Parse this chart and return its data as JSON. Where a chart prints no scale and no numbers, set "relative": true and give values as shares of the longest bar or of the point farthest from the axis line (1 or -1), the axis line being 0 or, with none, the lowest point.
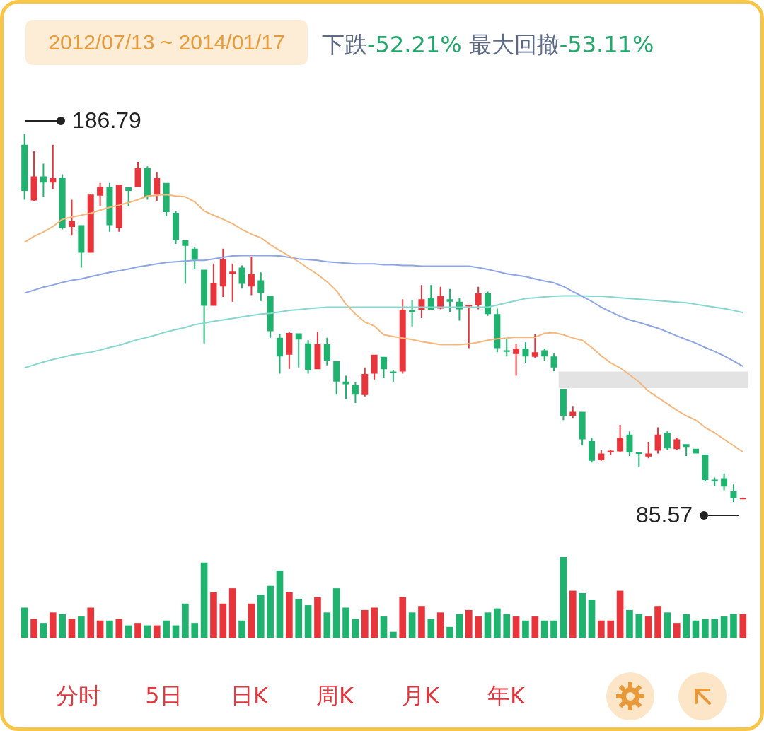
{
  "chart_data": [
    {
      "type": "candlestick",
      "title": "2012/07/13 ~ 2014/01/17",
      "subtitle": "下跌-52.21% 最大回撤-53.11%",
      "categories": [
        null,
        null,
        null,
        null,
        null,
        null,
        null,
        null,
        null,
        null,
        null,
        null,
        null,
        null,
        null,
        null,
        null,
        null,
        null,
        null,
        null,
        null,
        null,
        null,
        null,
        null,
        null,
        null,
        null,
        null,
        null,
        null,
        null,
        null,
        null,
        null,
        null,
        null,
        null,
        null,
        null,
        null,
        null,
        null,
        null,
        null,
        null,
        null,
        null,
        null,
        null,
        null,
        null,
        null,
        null,
        null,
        null,
        null,
        null,
        null,
        null,
        null,
        null,
        null,
        null,
        null,
        null,
        null,
        null,
        null,
        null,
        null,
        null,
        null,
        null,
        null,
        null
      ],
      "ohlc": [
        [
          183.9,
          186.79,
          168.8,
          171.2
        ],
        [
          168.6,
          182.3,
          168.3,
          175.2
        ],
        [
          175.2,
          178.7,
          169.5,
          173.5
        ],
        [
          173.5,
          183.9,
          171.7,
          174.7
        ],
        [
          174.7,
          175.8,
          160.6,
          161.0
        ],
        [
          161.3,
          168.8,
          158.9,
          162.9
        ],
        [
          161.8,
          161.8,
          150.1,
          154.2
        ],
        [
          154.2,
          170.4,
          154.2,
          170.2
        ],
        [
          169.9,
          173.4,
          167.0,
          172.3
        ],
        [
          172.3,
          173.4,
          160.0,
          161.8
        ],
        [
          161.0,
          172.9,
          160.0,
          172.9
        ],
        [
          172.2,
          172.2,
          167.1,
          171.2
        ],
        [
          172.3,
          179.2,
          172.3,
          177.5
        ],
        [
          177.5,
          178.0,
          168.8,
          169.6
        ],
        [
          170.2,
          176.4,
          168.3,
          174.7
        ],
        [
          173.4,
          173.4,
          164.3,
          165.4
        ],
        [
          165.2,
          165.6,
          156.6,
          157.7
        ],
        [
          157.6,
          157.6,
          145.6,
          156.1
        ],
        [
          155.3,
          155.8,
          149.6,
          152.2
        ],
        [
          149.5,
          149.5,
          129.2,
          139.6
        ],
        [
          139.6,
          151.2,
          139.6,
          145.9
        ],
        [
          144.9,
          155.3,
          142.0,
          152.4
        ],
        [
          148.3,
          151.2,
          140.7,
          149.0
        ],
        [
          150.1,
          150.7,
          144.3,
          145.6
        ],
        [
          144.9,
          153.1,
          142.5,
          148.3
        ],
        [
          146.6,
          148.8,
          140.9,
          143.1
        ],
        [
          142.3,
          142.3,
          130.8,
          132.6
        ],
        [
          130.8,
          131.8,
          120.9,
          125.6
        ],
        [
          126.1,
          132.5,
          122.2,
          132.1
        ],
        [
          132.0,
          132.0,
          122.6,
          130.3
        ],
        [
          129.2,
          130.1,
          120.9,
          121.9
        ],
        [
          122.1,
          132.5,
          122.1,
          129.0
        ],
        [
          129.0,
          130.8,
          123.2,
          124.5
        ],
        [
          124.3,
          124.3,
          115.1,
          118.7
        ],
        [
          118.7,
          120.3,
          113.9,
          118.0
        ],
        [
          117.8,
          118.5,
          112.8,
          115.1
        ],
        [
          115.0,
          122.6,
          114.6,
          120.8
        ],
        [
          120.9,
          126.1,
          119.3,
          126.1
        ],
        [
          125.5,
          125.5,
          119.8,
          122.1
        ],
        [
          121.5,
          121.9,
          118.7,
          121.1
        ],
        [
          121.5,
          141.4,
          120.9,
          138.5
        ],
        [
          138.3,
          141.2,
          133.9,
          137.9
        ],
        [
          138.5,
          145.3,
          136.2,
          141.4
        ],
        [
          141.8,
          145.3,
          138.5,
          138.5
        ],
        [
          138.8,
          144.8,
          138.6,
          142.3
        ],
        [
          141.4,
          144.2,
          137.9,
          140.7
        ],
        [
          140.7,
          141.8,
          135.5,
          138.6
        ],
        [
          139.4,
          139.9,
          127.9,
          139.9
        ],
        [
          139.8,
          144.8,
          138.6,
          143.0
        ],
        [
          143.0,
          143.5,
          136.8,
          137.3
        ],
        [
          137.3,
          138.8,
          126.8,
          127.9
        ],
        [
          127.3,
          130.7,
          125.6,
          126.9
        ],
        [
          126.3,
          129.1,
          120.3,
          127.8
        ],
        [
          127.8,
          129.5,
          123.9,
          125.6
        ],
        [
          125.5,
          131.8,
          125.2,
          126.8
        ],
        [
          127.3,
          127.8,
          124.5,
          125.6
        ],
        [
          125.6,
          126.4,
          121.6,
          122.6
        ],
        [
          116.7,
          116.7,
          108.1,
          109.3
        ],
        [
          109.3,
          112.0,
          108.7,
          110.4
        ],
        [
          110.4,
          110.4,
          101.1,
          102.8
        ],
        [
          102.3,
          103.3,
          96.4,
          96.9
        ],
        [
          97.1,
          99.9,
          96.9,
          98.9
        ],
        [
          99.2,
          99.9,
          98.4,
          99.7
        ],
        [
          99.5,
          106.8,
          99.2,
          103.3
        ],
        [
          104.1,
          105.0,
          98.2,
          99.2
        ],
        [
          99.2,
          99.2,
          95.3,
          98.8
        ],
        [
          98.1,
          102.1,
          97.6,
          98.9
        ],
        [
          99.7,
          106.1,
          98.9,
          104.1
        ],
        [
          104.6,
          105.0,
          99.9,
          100.3
        ],
        [
          100.1,
          103.3,
          99.9,
          102.8
        ],
        [
          101.5,
          101.5,
          98.2,
          100.7
        ],
        [
          100.2,
          100.2,
          98.9,
          98.9
        ],
        [
          98.6,
          98.6,
          91.2,
          91.6
        ],
        [
          91.7,
          92.3,
          89.9,
          91.2
        ],
        [
          92.1,
          93.4,
          88.8,
          89.8
        ],
        [
          88.5,
          90.4,
          85.57,
          86.7
        ],
        [
          86.5,
          86.8,
          86.4,
          86.7
        ]
      ],
      "colors": [
        "#1fb36f",
        "#e8353b",
        "#1fb36f",
        "#e8353b",
        "#1fb36f",
        "#e8353b",
        "#1fb36f",
        "#e8353b",
        "#e8353b",
        "#1fb36f",
        "#e8353b",
        "#1fb36f",
        "#e8353b",
        "#1fb36f",
        "#e8353b",
        "#1fb36f",
        "#1fb36f",
        "#1fb36f",
        "#1fb36f",
        "#1fb36f",
        "#e8353b",
        "#e8353b",
        "#e8353b",
        "#1fb36f",
        "#e8353b",
        "#1fb36f",
        "#1fb36f",
        "#1fb36f",
        "#e8353b",
        "#1fb36f",
        "#1fb36f",
        "#e8353b",
        "#1fb36f",
        "#1fb36f",
        "#1fb36f",
        "#1fb36f",
        "#e8353b",
        "#e8353b",
        "#1fb36f",
        "#1fb36f",
        "#e8353b",
        "#1fb36f",
        "#e8353b",
        "#1fb36f",
        "#e8353b",
        "#1fb36f",
        "#1fb36f",
        "#e8353b",
        "#e8353b",
        "#1fb36f",
        "#1fb36f",
        "#1fb36f",
        "#e8353b",
        "#1fb36f",
        "#e8353b",
        "#1fb36f",
        "#1fb36f",
        "#1fb36f",
        "#e8353b",
        "#1fb36f",
        "#1fb36f",
        "#e8353b",
        "#e8353b",
        "#e8353b",
        "#1fb36f",
        "#1fb36f",
        "#e8353b",
        "#e8353b",
        "#1fb36f",
        "#e8353b",
        "#1fb36f",
        "#1fb36f",
        "#1fb36f",
        "#1fb36f",
        "#1fb36f",
        "#1fb36f",
        "#e8353b"
      ],
      "series": [
        {
          "type": "line",
          "color": "#f4b77c",
          "values": [
            157.1,
            158.7,
            159.9,
            161.4,
            163.4,
            164.0,
            164.5,
            165.1,
            165.9,
            166.7,
            167.3,
            168.0,
            168.8,
            169.8,
            170.0,
            170.2,
            169.8,
            169.6,
            168.2,
            165.7,
            164.5,
            163.4,
            162.2,
            160.6,
            159.3,
            158.3,
            156.4,
            154.8,
            153.3,
            151.7,
            149.9,
            148.2,
            146.2,
            143.7,
            140.0,
            137.3,
            135.1,
            134.0,
            131.6,
            131.1,
            130.7,
            130.3,
            129.7,
            129.3,
            128.9,
            128.9,
            128.9,
            129.1,
            129.5,
            130.1,
            130.5,
            130.7,
            130.9,
            130.9,
            130.9,
            132.0,
            132.2,
            131.6,
            130.7,
            130.1,
            128.1,
            125.8,
            123.9,
            122.5,
            120.6,
            118.6,
            116.1,
            114.3,
            112.6,
            110.8,
            109.3,
            108.1,
            106.1,
            104.6,
            102.8,
            101.1,
            99.3
          ]
        },
        {
          "type": "line",
          "color": "#8ea5e4",
          "values": [
            143.1,
            143.9,
            144.7,
            145.3,
            146.0,
            146.6,
            147.0,
            147.6,
            148.2,
            148.8,
            149.2,
            149.7,
            150.3,
            150.7,
            151.1,
            151.5,
            151.7,
            151.9,
            152.1,
            152.1,
            152.5,
            152.9,
            153.3,
            153.4,
            153.4,
            153.4,
            153.4,
            153.3,
            152.9,
            152.5,
            152.3,
            152.1,
            151.7,
            151.5,
            151.3,
            151.1,
            151.1,
            151.1,
            150.9,
            150.9,
            150.7,
            150.7,
            150.5,
            150.5,
            150.5,
            150.5,
            150.5,
            150.5,
            150.1,
            149.6,
            149.0,
            148.4,
            148.0,
            147.6,
            147.0,
            146.4,
            145.9,
            144.9,
            143.5,
            142.2,
            140.8,
            139.2,
            137.9,
            136.7,
            135.7,
            135.0,
            134.2,
            133.4,
            132.4,
            131.3,
            130.3,
            129.3,
            128.1,
            127.0,
            125.8,
            124.4,
            122.9
          ]
        },
        {
          "type": "line",
          "color": "#86d7d0",
          "values": [
            122.5,
            123.3,
            124.1,
            124.8,
            125.4,
            126.0,
            126.4,
            126.8,
            127.4,
            128.1,
            128.7,
            129.5,
            130.3,
            130.9,
            131.6,
            132.4,
            133.0,
            133.6,
            134.4,
            134.8,
            135.3,
            135.7,
            136.1,
            136.5,
            136.9,
            137.3,
            137.5,
            137.9,
            138.3,
            138.5,
            138.8,
            139.0,
            139.2,
            139.2,
            139.2,
            139.2,
            139.2,
            139.2,
            139.2,
            139.2,
            139.2,
            139.2,
            139.2,
            139.2,
            139.2,
            139.2,
            139.2,
            139.2,
            139.2,
            139.2,
            139.8,
            140.4,
            141.0,
            141.6,
            141.8,
            142.0,
            142.2,
            142.3,
            142.3,
            142.3,
            142.2,
            142.2,
            142.0,
            141.8,
            141.6,
            141.4,
            141.2,
            141.0,
            140.8,
            140.6,
            140.4,
            140.0,
            139.6,
            139.2,
            138.8,
            138.3,
            137.7
          ]
        }
      ],
      "bands": [
        {
          "axis": "y",
          "from": 116.9,
          "to": 121.5,
          "color": "#e3e3e3"
        }
      ],
      "annotations": [
        "186.79",
        "85.57"
      ],
      "tick_labels": false
    },
    {
      "type": "bar",
      "relative": true,
      "tick_labels": false,
      "categories": [
        null,
        null,
        null,
        null,
        null,
        null,
        null,
        null,
        null,
        null,
        null,
        null,
        null,
        null,
        null,
        null,
        null,
        null,
        null,
        null,
        null,
        null,
        null,
        null,
        null,
        null,
        null,
        null,
        null,
        null,
        null,
        null,
        null,
        null,
        null,
        null,
        null,
        null,
        null,
        null,
        null,
        null,
        null,
        null,
        null,
        null,
        null,
        null,
        null,
        null,
        null,
        null,
        null,
        null,
        null,
        null,
        null,
        null,
        null,
        null,
        null,
        null,
        null,
        null,
        null,
        null,
        null,
        null,
        null,
        null,
        null,
        null,
        null,
        null,
        null,
        null,
        null
      ],
      "values": [
        0.37,
        0.23,
        0.18,
        0.31,
        0.29,
        0.23,
        0.26,
        0.37,
        0.21,
        0.21,
        0.23,
        0.15,
        0.18,
        0.15,
        0.15,
        0.21,
        0.15,
        0.42,
        0.18,
        0.93,
        0.56,
        0.42,
        0.61,
        0.21,
        0.42,
        0.53,
        0.64,
        0.83,
        0.56,
        0.48,
        0.4,
        0.5,
        0.31,
        0.61,
        0.37,
        0.23,
        0.34,
        0.37,
        0.26,
        0.07,
        0.5,
        0.31,
        0.39,
        0.23,
        0.31,
        0.13,
        0.29,
        0.34,
        0.26,
        0.31,
        0.36,
        0.29,
        0.26,
        0.21,
        0.26,
        0.21,
        0.21,
        1,
        0.58,
        0.55,
        0.47,
        0.21,
        0.21,
        0.58,
        0.34,
        0.29,
        0.26,
        0.39,
        0.31,
        0.18,
        0.29,
        0.21,
        0.23,
        0.23,
        0.26,
        0.29,
        0.29
      ],
      "colors": [
        "#1fb36f",
        "#e8353b",
        "#1fb36f",
        "#e8353b",
        "#1fb36f",
        "#e8353b",
        "#1fb36f",
        "#e8353b",
        "#e8353b",
        "#1fb36f",
        "#e8353b",
        "#1fb36f",
        "#e8353b",
        "#1fb36f",
        "#e8353b",
        "#1fb36f",
        "#1fb36f",
        "#1fb36f",
        "#1fb36f",
        "#1fb36f",
        "#e8353b",
        "#e8353b",
        "#e8353b",
        "#1fb36f",
        "#e8353b",
        "#1fb36f",
        "#1fb36f",
        "#1fb36f",
        "#e8353b",
        "#1fb36f",
        "#1fb36f",
        "#e8353b",
        "#1fb36f",
        "#1fb36f",
        "#1fb36f",
        "#1fb36f",
        "#e8353b",
        "#e8353b",
        "#1fb36f",
        "#1fb36f",
        "#e8353b",
        "#1fb36f",
        "#e8353b",
        "#1fb36f",
        "#e8353b",
        "#1fb36f",
        "#1fb36f",
        "#e8353b",
        "#e8353b",
        "#1fb36f",
        "#1fb36f",
        "#1fb36f",
        "#e8353b",
        "#1fb36f",
        "#e8353b",
        "#1fb36f",
        "#1fb36f",
        "#1fb36f",
        "#e8353b",
        "#1fb36f",
        "#1fb36f",
        "#e8353b",
        "#e8353b",
        "#e8353b",
        "#1fb36f",
        "#1fb36f",
        "#e8353b",
        "#e8353b",
        "#1fb36f",
        "#e8353b",
        "#1fb36f",
        "#1fb36f",
        "#1fb36f",
        "#1fb36f",
        "#1fb36f",
        "#1fb36f",
        "#e8353b"
      ],
      "annotations": [
        "分时",
        "5日",
        "日K",
        "周K",
        "月K",
        "年K"
      ]
    }
  ]
}
